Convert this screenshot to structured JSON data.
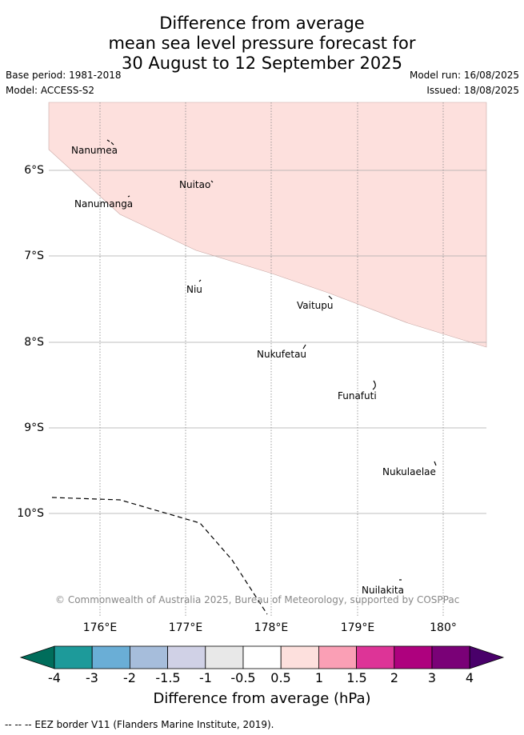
{
  "title": {
    "line1": "Difference from average",
    "line2": "mean sea level pressure forecast for",
    "line3": "30 August to 12 September 2025"
  },
  "meta": {
    "base_period": "Base period: 1981-2018",
    "model": "Model: ACCESS-S2",
    "model_run": "Model run: 16/08/2025",
    "issued": "Issued: 18/08/2025"
  },
  "map": {
    "lat_labels": [
      "6°S",
      "7°S",
      "8°S",
      "9°S",
      "10°S"
    ],
    "lon_labels": [
      "176°E",
      "177°E",
      "178°E",
      "179°E",
      "180°"
    ],
    "places": {
      "nanumea": "Nanumea",
      "nuitao": "Nuitao",
      "nanumanga": "Nanumanga",
      "niu": "Niu",
      "vaitupu": "Vaitupu",
      "nukufetau": "Nukufetau",
      "funafuti": "Funafuti",
      "nukulaelae": "Nukulaelae",
      "nuilakita": "Nuilakita"
    },
    "shaded_anomaly_category": "0.5 to 1",
    "shaded_color": "#fde0dd",
    "credit": "© Commonwealth of Australia 2025, Bureau of Meteorology, supported by COSPPac"
  },
  "colorbar": {
    "colors": [
      "#006d5b",
      "#1d9a9a",
      "#6aaed6",
      "#a6bddb",
      "#d0d1e6",
      "#e8e8e8",
      "#ffffff",
      "#fde0dd",
      "#fa9fb5",
      "#dd3497",
      "#ae017e",
      "#7a0177",
      "#49006a"
    ],
    "labels": [
      "-4",
      "-3",
      "-2",
      "-1.5",
      "-1",
      "-0.5",
      "0.5",
      "1",
      "1.5",
      "2",
      "3",
      "4"
    ],
    "title": "Difference from average (hPa)"
  },
  "footnote": "-- -- -- EEZ border V11 (Flanders Marine Institute, 2019)."
}
